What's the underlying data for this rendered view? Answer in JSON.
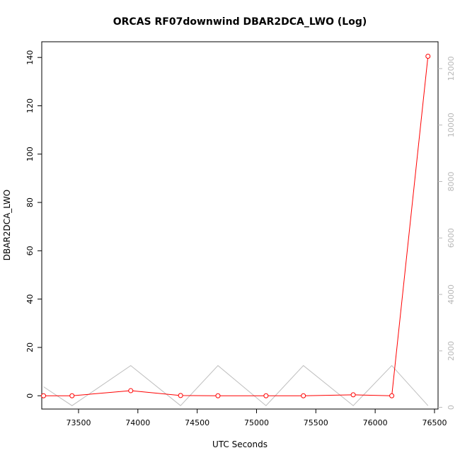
{
  "chart_data": {
    "type": "line",
    "title": "ORCAS RF07downwind DBAR2DCA_LWO (Log)",
    "xlabel": "UTC Seconds",
    "ylabel": "DBAR2DCA_LWO",
    "xlim": [
      73190,
      76530
    ],
    "ylim": [
      -5.5,
      146.5
    ],
    "y2lim": [
      -60,
      12950
    ],
    "x_ticks": [
      73500,
      74000,
      74500,
      75000,
      75500,
      76000,
      76500
    ],
    "y_ticks": [
      0,
      20,
      40,
      60,
      80,
      100,
      120,
      140
    ],
    "y2_ticks": [
      0,
      2000,
      4000,
      6000,
      8000,
      10000,
      12000
    ],
    "grid": false,
    "legend": "none",
    "series": [
      {
        "color": "#ff0000",
        "axis": "left",
        "markers": "open-circle",
        "x": [
          73205,
          73445,
          73940,
          74360,
          74675,
          75080,
          75395,
          75815,
          76140,
          76445
        ],
        "y": [
          0.0,
          0.0,
          2.1,
          0.1,
          0.0,
          0.0,
          0.0,
          0.4,
          0.0,
          140.5
        ]
      },
      {
        "color": "#bebebe",
        "axis": "right",
        "markers": "none",
        "x": [
          73205,
          73445,
          73940,
          74360,
          74675,
          75080,
          75395,
          75815,
          76140,
          76445
        ],
        "y": [
          730,
          60,
          1480,
          60,
          1480,
          60,
          1480,
          60,
          1480,
          60
        ]
      }
    ]
  }
}
